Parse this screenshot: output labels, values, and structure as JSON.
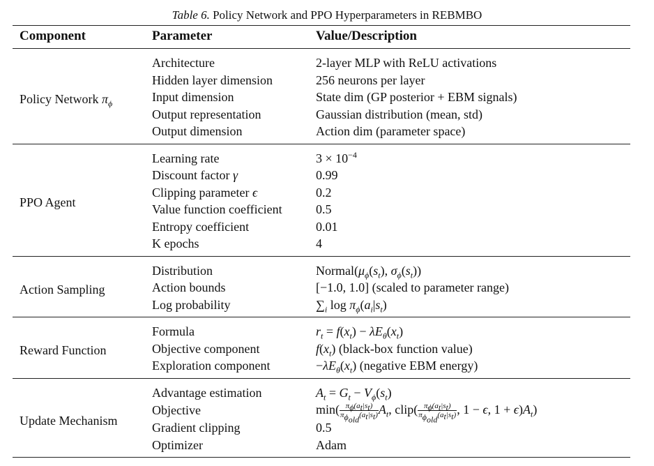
{
  "caption": {
    "label": "Table 6.",
    "text": "Policy Network and PPO Hyperparameters in REBMBO"
  },
  "columns": [
    "Component",
    "Parameter",
    "Value/Description"
  ],
  "groups": [
    {
      "component": "Policy Network π_ϕ",
      "rows": [
        {
          "param": "Architecture",
          "value": "2-layer MLP with ReLU activations"
        },
        {
          "param": "Hidden layer dimension",
          "value": "256 neurons per layer"
        },
        {
          "param": "Input dimension",
          "value": "State dim (GP posterior + EBM signals)"
        },
        {
          "param": "Output representation",
          "value": "Gaussian distribution (mean, std)"
        },
        {
          "param": "Output dimension",
          "value": "Action dim (parameter space)"
        }
      ]
    },
    {
      "component": "PPO Agent",
      "rows": [
        {
          "param": "Learning rate",
          "value": "3 × 10^−4"
        },
        {
          "param": "Discount factor γ",
          "value": "0.99"
        },
        {
          "param": "Clipping parameter ϵ",
          "value": "0.2"
        },
        {
          "param": "Value function coefficient",
          "value": "0.5"
        },
        {
          "param": "Entropy coefficient",
          "value": "0.01"
        },
        {
          "param": "K epochs",
          "value": "4"
        }
      ]
    },
    {
      "component": "Action Sampling",
      "rows": [
        {
          "param": "Distribution",
          "value": "Normal(μ_ϕ(s_t), σ_ϕ(s_t))"
        },
        {
          "param": "Action bounds",
          "value": "[−1.0, 1.0] (scaled to parameter range)"
        },
        {
          "param": "Log probability",
          "value": "∑_i log π_ϕ(a_i|s_t)"
        }
      ]
    },
    {
      "component": "Reward Function",
      "rows": [
        {
          "param": "Formula",
          "value": "r_t = f(x_t) − λE_θ(x_t)"
        },
        {
          "param": "Objective component",
          "value": "f(x_t) (black-box function value)"
        },
        {
          "param": "Exploration component",
          "value": "−λE_θ(x_t) (negative EBM energy)"
        }
      ]
    },
    {
      "component": "Update Mechanism",
      "rows": [
        {
          "param": "Advantage estimation",
          "value": "A_t = G_t − V_ϕ(s_t)"
        },
        {
          "param": "Objective",
          "value": "min(π_ϕ(a_t|s_t)/π_ϕold(a_t|s_t) A_t, clip(π_ϕ(a_t|s_t)/π_ϕold(a_t|s_t), 1 − ϵ, 1 + ϵ)A_t)"
        },
        {
          "param": "Gradient clipping",
          "value": "0.5"
        },
        {
          "param": "Optimizer",
          "value": "Adam"
        }
      ]
    }
  ]
}
